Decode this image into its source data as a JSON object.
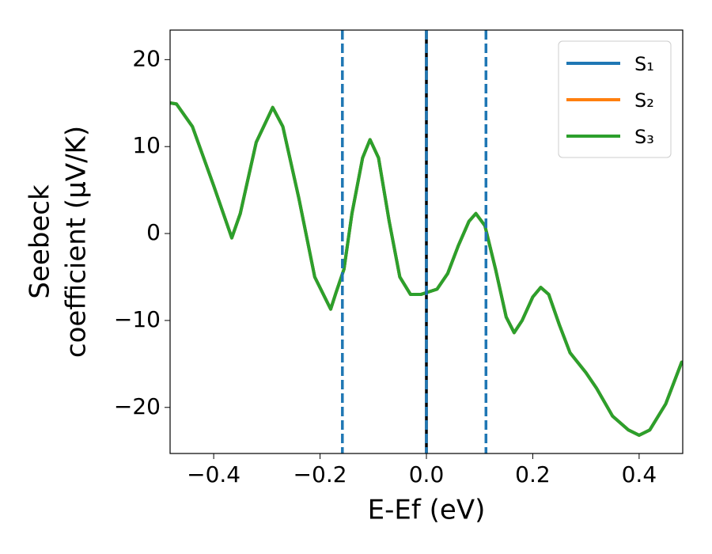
{
  "chart_data": {
    "type": "line",
    "xlabel": "E-Ef (eV)",
    "ylabel": [
      "Seebeck",
      "coefficient  (μV/K)"
    ],
    "x": [
      -0.48,
      -0.47,
      -0.44,
      -0.4,
      -0.366,
      -0.35,
      -0.32,
      -0.289,
      -0.27,
      -0.24,
      -0.21,
      -0.18,
      -0.17,
      -0.155,
      -0.14,
      -0.12,
      -0.106,
      -0.09,
      -0.07,
      -0.05,
      -0.03,
      -0.01,
      0.0,
      0.02,
      0.04,
      0.06,
      0.08,
      0.093,
      0.11,
      0.13,
      0.15,
      0.165,
      0.18,
      0.2,
      0.215,
      0.23,
      0.25,
      0.27,
      0.3,
      0.32,
      0.35,
      0.38,
      0.4,
      0.42,
      0.45,
      0.48
    ],
    "series": [
      {
        "name": "S₁",
        "color": "#1f77b4",
        "values": [
          15.0,
          14.9,
          12.3,
          5.5,
          -0.5,
          2.3,
          10.5,
          14.5,
          12.3,
          4.1,
          -5.0,
          -8.7,
          -6.8,
          -4.1,
          2.3,
          8.7,
          10.8,
          8.7,
          1.4,
          -5.0,
          -7.0,
          -7.0,
          -6.8,
          -6.4,
          -4.6,
          -1.4,
          1.4,
          2.3,
          0.9,
          -4.1,
          -9.6,
          -11.4,
          -10.0,
          -7.3,
          -6.2,
          -7.0,
          -10.5,
          -13.7,
          -16.0,
          -17.8,
          -21.0,
          -22.6,
          -23.2,
          -22.6,
          -19.6,
          -14.8
        ]
      },
      {
        "name": "S₂",
        "color": "#ff7f0e",
        "values": [
          15.0,
          14.9,
          12.3,
          5.5,
          -0.5,
          2.3,
          10.5,
          14.5,
          12.3,
          4.1,
          -5.0,
          -8.7,
          -6.8,
          -4.1,
          2.3,
          8.7,
          10.8,
          8.7,
          1.4,
          -5.0,
          -7.0,
          -7.0,
          -6.8,
          -6.4,
          -4.6,
          -1.4,
          1.4,
          2.3,
          0.9,
          -4.1,
          -9.6,
          -11.4,
          -10.0,
          -7.3,
          -6.2,
          -7.0,
          -10.5,
          -13.7,
          -16.0,
          -17.8,
          -21.0,
          -22.6,
          -23.2,
          -22.6,
          -19.6,
          -14.8
        ]
      },
      {
        "name": "S₃",
        "color": "#2ca02c",
        "values": [
          15.0,
          14.9,
          12.3,
          5.5,
          -0.5,
          2.3,
          10.5,
          14.5,
          12.3,
          4.1,
          -5.0,
          -8.7,
          -6.8,
          -4.1,
          2.3,
          8.7,
          10.8,
          8.7,
          1.4,
          -5.0,
          -7.0,
          -7.0,
          -6.8,
          -6.4,
          -4.6,
          -1.4,
          1.4,
          2.3,
          0.9,
          -4.1,
          -9.6,
          -11.4,
          -10.0,
          -7.3,
          -6.2,
          -7.0,
          -10.5,
          -13.7,
          -16.0,
          -17.8,
          -21.0,
          -22.6,
          -23.2,
          -22.6,
          -19.6,
          -14.8
        ]
      }
    ],
    "vlines": [
      {
        "value": 0,
        "color": "#000000",
        "dashed": false
      },
      {
        "value": -0.158,
        "color": "#1f77b4",
        "dashed": true
      },
      {
        "value": 0,
        "color": "#1f77b4",
        "dashed": true
      },
      {
        "value": 0.112,
        "color": "#1f77b4",
        "dashed": true
      }
    ],
    "xlim": [
      -0.482,
      0.482
    ],
    "ylim": [
      -25.3,
      23.4
    ],
    "xticks": [
      {
        "value": -0.4,
        "label": "−0.4"
      },
      {
        "value": -0.2,
        "label": "−0.2"
      },
      {
        "value": 0,
        "label": "0.0"
      },
      0.2,
      0.4
    ],
    "yticks": [
      {
        "value": -20,
        "label": "−20"
      },
      {
        "value": -10,
        "label": "−10"
      },
      0,
      10,
      20
    ],
    "legend": "upper right",
    "grid": false
  }
}
